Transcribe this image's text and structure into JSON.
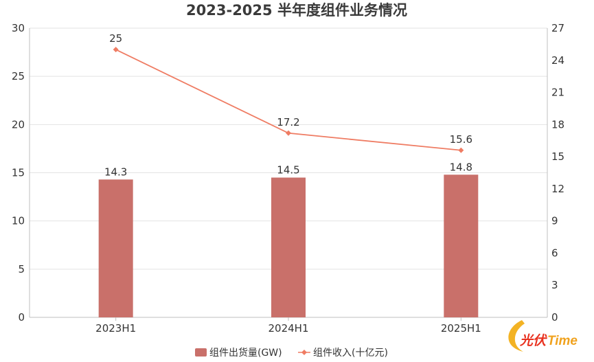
{
  "chart_data": {
    "type": "bar",
    "title": "2023-2025 半年度组件业务情况",
    "categories": [
      "2023H1",
      "2024H1",
      "2025H1"
    ],
    "series": [
      {
        "name": "组件出货量(GW)",
        "type": "bar",
        "axis": "left",
        "values": [
          14.3,
          14.5,
          14.8
        ],
        "color": "#c9706a"
      },
      {
        "name": "组件收入(十亿元)",
        "type": "line",
        "axis": "right",
        "values": [
          25,
          17.2,
          15.6
        ],
        "color": "#ef7c63"
      }
    ],
    "data_labels": {
      "bar": [
        "14.3",
        "14.5",
        "14.8"
      ],
      "line": [
        "25",
        "17.2",
        "15.6"
      ]
    },
    "y_left": {
      "min": 0,
      "max": 30,
      "ticks": [
        "0",
        "5",
        "10",
        "15",
        "20",
        "25",
        "30"
      ]
    },
    "y_right": {
      "min": 0,
      "max": 27,
      "ticks": [
        "0",
        "3",
        "6",
        "9",
        "12",
        "15",
        "18",
        "21",
        "24",
        "27"
      ]
    },
    "grid": true,
    "legend_position": "bottom-center"
  },
  "logo": {
    "text_cn": "光伏",
    "text_en": "Time",
    "colors": {
      "cn": "#e8301e",
      "en": "#f0a21e",
      "swoosh": "#f3b324"
    }
  }
}
